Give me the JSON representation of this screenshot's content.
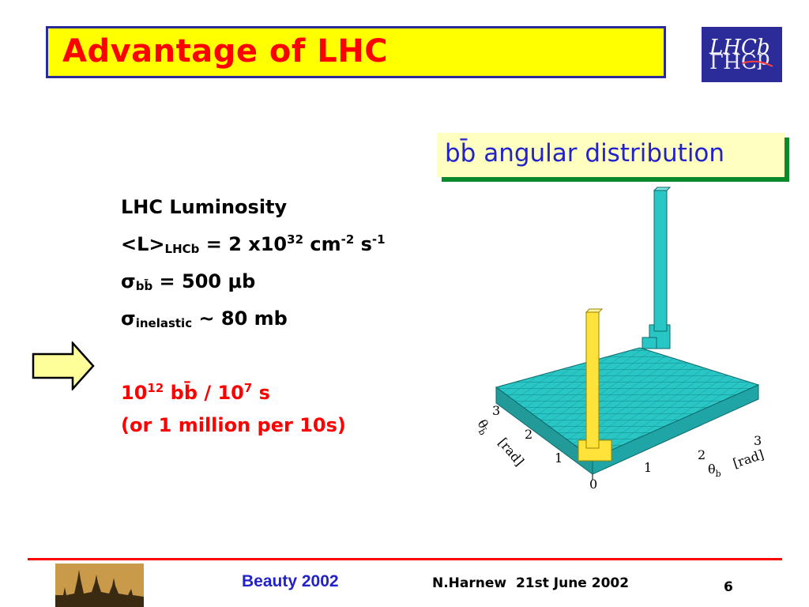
{
  "slide": {
    "title": "Advantage of LHC",
    "logo_text": "LHCb",
    "callout": "bb̄ angular distribution",
    "lines": {
      "l1": "LHC Luminosity",
      "l2_main": "<L>",
      "l2_sub": "LHCb",
      "l2_eq": " = 2 x10",
      "l2_sup1": "32",
      "l2_cm": " cm",
      "l2_sup2": "-2",
      "l2_s": " s",
      "l2_sup3": "-1",
      "l3_sigma": "σ",
      "l3_sub": "bb̄",
      "l3_eq": "  = 500 μb",
      "l4_sigma": "σ",
      "l4_sub": "inelastic",
      "l4_eq": " ~ 80 mb",
      "r1_a": "10",
      "r1_sup1": "12",
      "r1_b": " bb̄ / 10",
      "r1_sup2": "7",
      "r1_c": " s",
      "r2": "(or 1 million per 10s)"
    },
    "plot": {
      "x_axis_label": "θ",
      "x_axis_sub": "b",
      "x_axis_unit": "[rad]",
      "y_axis_label": "θ",
      "y_axis_sub": "b̄",
      "y_axis_unit": "[rad]",
      "x_ticks": [
        "0",
        "1",
        "2",
        "3"
      ],
      "y_ticks": [
        "1",
        "2",
        "3"
      ]
    },
    "colors": {
      "title_bg": "#ffff00",
      "title_text": "#ff0000",
      "border": "#2b2b9a",
      "callout_text": "#2222cc",
      "callout_shadow": "#0b8a2b",
      "surface": "#29c6c6",
      "peak_yellow": "#ffe23a",
      "highlight_text": "#ff0000"
    }
  },
  "footer": {
    "left": "Beauty 2002",
    "middle": "N.Harnew  21st June 2002",
    "page": "6"
  }
}
